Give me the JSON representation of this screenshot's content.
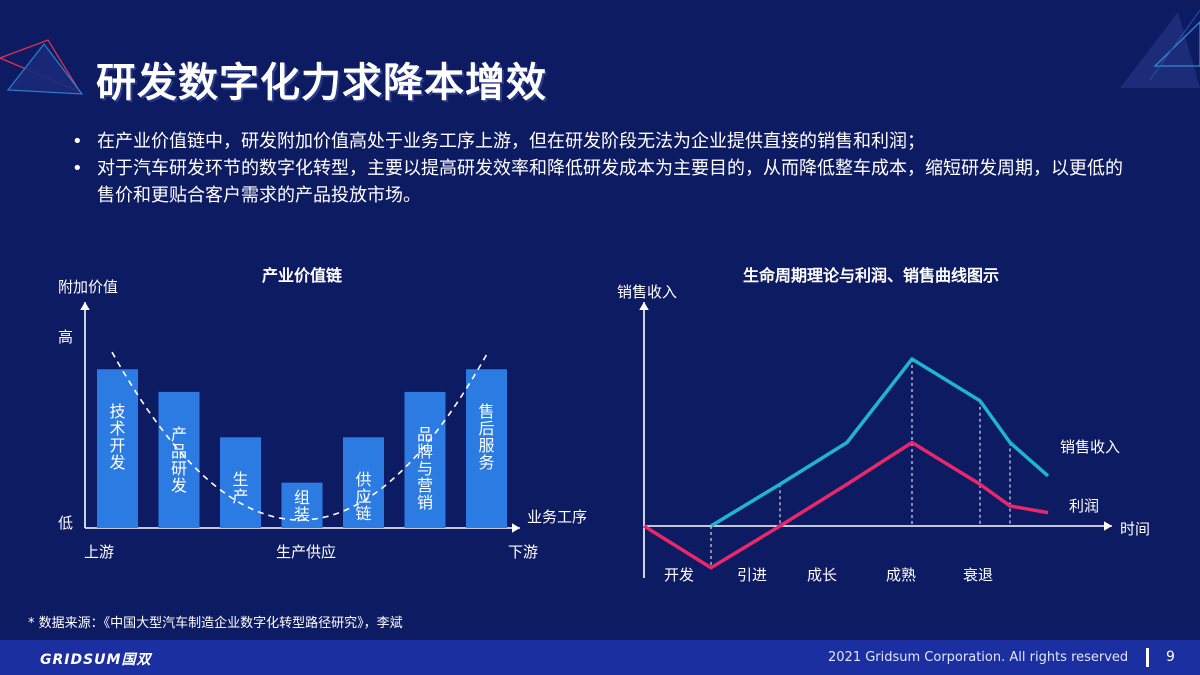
{
  "slide": {
    "title": "研发数字化力求降本增效",
    "bullets": [
      "在产业价值链中，研发附加价值高处于业务工序上游，但在研发阶段无法为企业提供直接的销售和利润；",
      "对于汽车研发环节的数字化转型，主要以提高研发效率和降低研发成本为主要目的，从而降低整车成本，缩短研发周期，以更低的售价和更贴合客户需求的产品投放市场。"
    ],
    "bullet_symbol": "•",
    "source": "* 数据来源：《中国大型汽车制造企业数字化转型路径研究》，李斌",
    "footer": {
      "logo": "GRIDSUM国双",
      "copyright": "2021 Gridsum Corporation. All rights reserved",
      "page": "9"
    },
    "colors": {
      "background": "#0d1b63",
      "footer": "#1b2fa0",
      "bar": "#2b7be3",
      "sales": "#1fb5cf",
      "profit": "#e8286a"
    }
  },
  "chart_data": [
    {
      "type": "bar",
      "title": "产业价值链",
      "ylabel": "附加价值",
      "xlabel": "业务工序",
      "y_tick_labels": [
        "高",
        "低"
      ],
      "x_tick_labels": [
        "上游",
        "生产供应",
        "下游"
      ],
      "categories": [
        "技术开发",
        "产品研发",
        "生产",
        "组装",
        "供应链",
        "品牌与营销",
        "售后服务"
      ],
      "values": [
        0.98,
        0.84,
        0.56,
        0.28,
        0.56,
        0.84,
        0.98
      ],
      "ylim": [
        0,
        1
      ],
      "trend": "U-shaped dashed curve"
    },
    {
      "type": "line",
      "title": "生命周期理论与利润、销售曲线图示",
      "ylabel": "销售收入",
      "xlabel": "时间",
      "stages": [
        "开发",
        "引进",
        "成长",
        "成熟",
        "衰退"
      ],
      "x": [
        0,
        1,
        2,
        3,
        4,
        5,
        6,
        7
      ],
      "xlim": [
        0,
        7
      ],
      "ylim": [
        -0.3,
        1.0
      ],
      "stage_dividers": [
        1,
        2,
        4,
        5,
        6
      ],
      "series": [
        {
          "name": "销售收入",
          "values": [
            null,
            0,
            0.25,
            0.5,
            1.0,
            0.75,
            0.5,
            0.3
          ]
        },
        {
          "name": "利润",
          "values": [
            0,
            -0.25,
            0,
            0.25,
            0.5,
            0.25,
            0.12,
            0.08
          ]
        }
      ]
    }
  ]
}
